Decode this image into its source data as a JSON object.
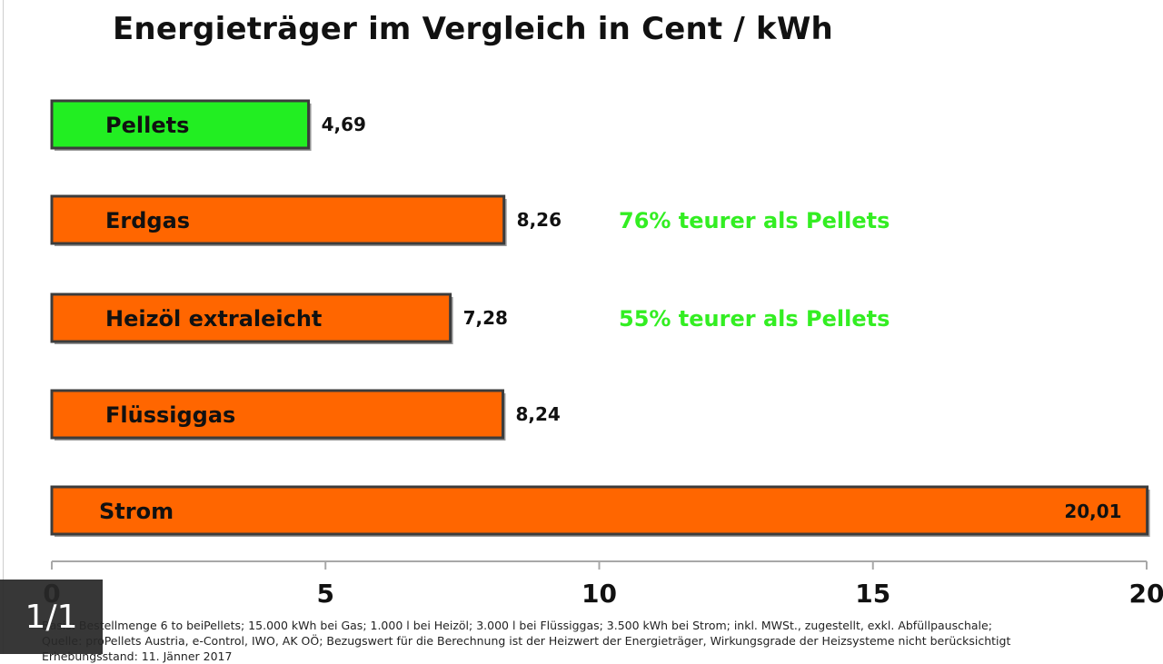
{
  "chart_data": {
    "type": "bar",
    "orientation": "horizontal",
    "title": "Energieträger im Vergleich in Cent / kWh",
    "categories": [
      "Pellets",
      "Erdgas",
      "Heizöl extraleicht",
      "Flüssiggas",
      "Strom"
    ],
    "values": [
      4.69,
      8.26,
      7.28,
      8.24,
      20.01
    ],
    "value_labels": [
      "4,69",
      "8,26",
      "7,28",
      "8,24",
      "20,01"
    ],
    "bar_colors": [
      "#22ee22",
      "#ff6600",
      "#ff6600",
      "#ff6600",
      "#ff6600"
    ],
    "annotations": [
      {
        "category": "Erdgas",
        "text": "76% teurer als Pellets",
        "color": "#33ee22"
      },
      {
        "category": "Heizöl extraleicht",
        "text": "55% teurer als Pellets",
        "color": "#33ee22"
      }
    ],
    "xlim": [
      0,
      20
    ],
    "xticks": [
      0,
      5,
      10,
      15,
      20
    ],
    "xlabel": "",
    "ylabel": "",
    "grid": false,
    "legend": "none"
  },
  "notes": {
    "line1": "Basis: Bestellmenge 6 to beiPellets; 15.000 kWh bei Gas; 1.000 l bei Heizöl; 3.000 l bei Flüssiggas; 3.500 kWh bei Strom; inkl. MWSt., zugestellt, exkl. Abfüllpauschale;",
    "line2": "Quelle: proPellets Austria, e-Control, IWO, AK OÖ; Bezugswert für die Berechnung ist der Heizwert der Energieträger, Wirkungsgrade der Heizsysteme nicht berücksichtigt",
    "line3": "Erhebungsstand: 11. Jänner 2017"
  },
  "viewer": {
    "page_indicator": "1/1"
  }
}
